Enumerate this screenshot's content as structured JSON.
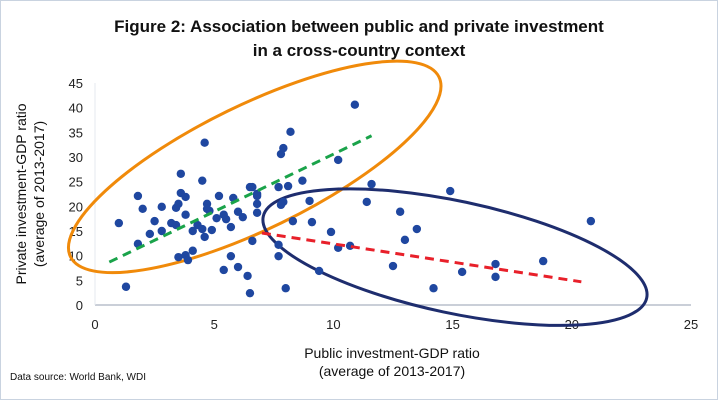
{
  "chart_data": {
    "type": "scatter",
    "title": "Figure 2: Association between public and private investment",
    "title_line2": "in a cross-country context",
    "xlabel": "Public investment-GDP ratio",
    "xlabel_line2": "(average of 2013-2017)",
    "ylabel": "Private investment-GDP ratio",
    "ylabel_line2": "(average of 2013-2017)",
    "xlim": [
      0,
      25
    ],
    "ylim": [
      0,
      45
    ],
    "xticks": [
      0,
      5,
      10,
      15,
      20,
      25
    ],
    "yticks": [
      0,
      5,
      10,
      15,
      20,
      25,
      30,
      35,
      40,
      45
    ],
    "grid": false,
    "legend": "none",
    "source": "Data source: World Bank, WDI",
    "marker_color": "#1f47a0",
    "points": [
      [
        1.0,
        16.6
      ],
      [
        1.3,
        3.7
      ],
      [
        1.8,
        22.1
      ],
      [
        2.0,
        19.5
      ],
      [
        1.8,
        12.4
      ],
      [
        2.3,
        14.4
      ],
      [
        2.5,
        17.0
      ],
      [
        2.8,
        15.0
      ],
      [
        2.8,
        19.9
      ],
      [
        3.2,
        16.6
      ],
      [
        3.4,
        16.2
      ],
      [
        3.4,
        19.7
      ],
      [
        3.5,
        20.5
      ],
      [
        3.6,
        22.7
      ],
      [
        3.8,
        21.9
      ],
      [
        3.6,
        26.6
      ],
      [
        3.8,
        18.3
      ],
      [
        3.5,
        9.7
      ],
      [
        3.8,
        10.1
      ],
      [
        3.9,
        9.1
      ],
      [
        4.1,
        11.0
      ],
      [
        4.1,
        15.0
      ],
      [
        4.3,
        16.2
      ],
      [
        4.5,
        25.2
      ],
      [
        4.5,
        15.4
      ],
      [
        4.6,
        13.8
      ],
      [
        4.6,
        32.9
      ],
      [
        4.7,
        20.5
      ],
      [
        4.7,
        19.5
      ],
      [
        4.8,
        19.1
      ],
      [
        4.9,
        15.2
      ],
      [
        5.1,
        17.6
      ],
      [
        5.2,
        22.1
      ],
      [
        5.4,
        18.3
      ],
      [
        5.5,
        17.4
      ],
      [
        5.7,
        9.9
      ],
      [
        5.4,
        7.1
      ],
      [
        5.7,
        15.8
      ],
      [
        5.8,
        21.7
      ],
      [
        6.0,
        18.9
      ],
      [
        6.0,
        7.7
      ],
      [
        6.2,
        17.8
      ],
      [
        6.4,
        5.9
      ],
      [
        6.5,
        2.4
      ],
      [
        6.5,
        23.9
      ],
      [
        6.6,
        13.0
      ],
      [
        6.6,
        23.9
      ],
      [
        6.8,
        22.1
      ],
      [
        6.8,
        18.7
      ],
      [
        6.8,
        22.5
      ],
      [
        6.8,
        20.5
      ],
      [
        7.7,
        12.2
      ],
      [
        7.7,
        9.9
      ],
      [
        7.7,
        23.9
      ],
      [
        7.8,
        30.6
      ],
      [
        7.9,
        31.8
      ],
      [
        7.9,
        20.9
      ],
      [
        7.8,
        20.3
      ],
      [
        8.0,
        3.4
      ],
      [
        8.1,
        24.1
      ],
      [
        8.2,
        35.1
      ],
      [
        8.3,
        17.0
      ],
      [
        8.7,
        25.2
      ],
      [
        9.0,
        21.1
      ],
      [
        9.1,
        16.8
      ],
      [
        9.4,
        6.9
      ],
      [
        9.9,
        14.8
      ],
      [
        10.2,
        29.4
      ],
      [
        10.2,
        11.6
      ],
      [
        10.7,
        12.0
      ],
      [
        10.9,
        40.6
      ],
      [
        11.4,
        20.9
      ],
      [
        11.6,
        24.5
      ],
      [
        12.5,
        7.9
      ],
      [
        12.8,
        18.9
      ],
      [
        13.0,
        13.2
      ],
      [
        13.5,
        15.4
      ],
      [
        14.2,
        3.4
      ],
      [
        14.9,
        23.1
      ],
      [
        15.4,
        6.7
      ],
      [
        16.8,
        5.7
      ],
      [
        16.8,
        8.3
      ],
      [
        18.8,
        8.9
      ],
      [
        20.8,
        17.0
      ]
    ],
    "trend_lines": [
      {
        "name": "positive-trend",
        "color": "#1aa34a",
        "style": "dashed",
        "from": [
          0.6,
          8.7
        ],
        "to": [
          11.6,
          34.3
        ]
      },
      {
        "name": "negative-trend",
        "color": "#e8202a",
        "style": "dashed",
        "from": [
          7.0,
          14.6
        ],
        "to": [
          20.4,
          4.7
        ]
      }
    ],
    "annotations": [
      {
        "name": "orange-ellipse",
        "color": "#f08a0a",
        "shape": "ellipse",
        "center": [
          6.7,
          28.0
        ],
        "encloses": "low public investment cluster"
      },
      {
        "name": "navy-ellipse",
        "color": "#1e2d6e",
        "shape": "ellipse",
        "center": [
          15.1,
          9.7
        ],
        "encloses": "high public investment cluster"
      }
    ]
  }
}
